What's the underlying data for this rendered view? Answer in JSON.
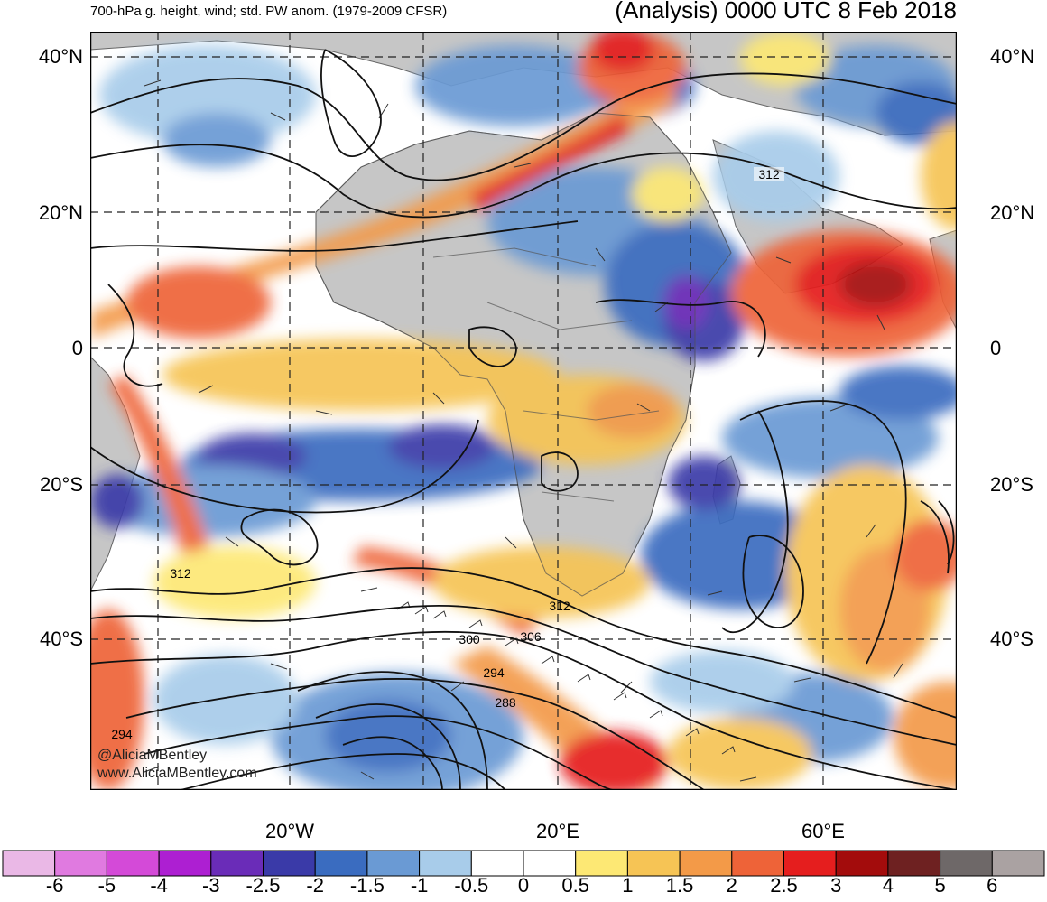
{
  "header": {
    "left_title": "700-hPa g. height, wind; std. PW anom. (1979-2009 CFSR)",
    "right_title": "(Analysis) 0000 UTC 8 Feb 2018"
  },
  "map": {
    "lat_labels": [
      "40°N",
      "20°N",
      "0",
      "20°S",
      "40°S"
    ],
    "lon_labels": [
      "20°W",
      "20°E",
      "60°E"
    ],
    "contour_labels": [
      "312",
      "312",
      "312",
      "306",
      "300",
      "294",
      "288",
      "294"
    ],
    "watermark": [
      "@AliciaMBentley",
      "www.AliciaMBentley.com"
    ]
  },
  "legend": {
    "labels": [
      "-6",
      "-5",
      "-4",
      "-3",
      "-2.5",
      "-2",
      "-1.5",
      "-1",
      "-0.5",
      "0",
      "0.5",
      "1",
      "1.5",
      "2",
      "2.5",
      "3",
      "4",
      "5",
      "6"
    ],
    "colors": [
      "#eab8e6",
      "#e07ae0",
      "#d44ad8",
      "#ad1fd2",
      "#6a2cb8",
      "#3a3aa8",
      "#3a6cc0",
      "#6a9ad4",
      "#a8ccea",
      "#ffffff",
      "#ffffff",
      "#fde874",
      "#f6c455",
      "#f39a48",
      "#ee6338",
      "#e51e1e",
      "#a30c0c",
      "#6e2121",
      "#6e6868",
      "#aaa2a2"
    ]
  }
}
